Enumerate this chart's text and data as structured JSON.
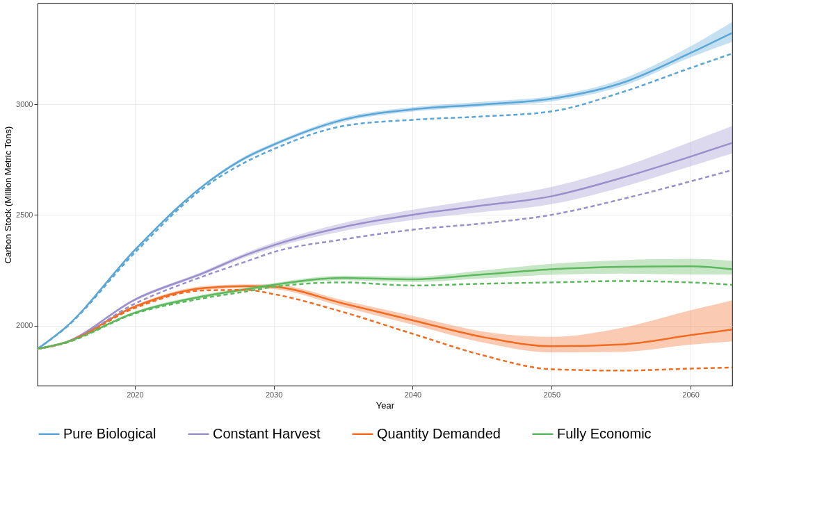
{
  "chart_data": {
    "type": "line",
    "xlabel": "Year",
    "ylabel": "Carbon Stock (Million Metric Tons)",
    "x": [
      2013,
      2015,
      2020,
      2025,
      2028,
      2030,
      2035,
      2040,
      2045,
      2050,
      2055,
      2060,
      2063
    ],
    "xlim": [
      2013,
      2063
    ],
    "xticks": [
      2020,
      2030,
      2040,
      2050,
      2060
    ],
    "ylim": [
      1730,
      3455
    ],
    "yticks": [
      2000,
      2500,
      3000
    ],
    "grid": true,
    "legend": "bottom",
    "marker": "none",
    "series": [
      {
        "name": "Pure Biological",
        "color": "#5aa6d6",
        "values": [
          1896,
          1992,
          2342,
          2636,
          2760,
          2818,
          2930,
          2977,
          2999,
          3025,
          3095,
          3232,
          3322
        ],
        "lower": [
          1896,
          1990,
          2336,
          2630,
          2752,
          2810,
          2920,
          2967,
          2989,
          3013,
          3080,
          3212,
          3282
        ],
        "upper": [
          1896,
          1994,
          2348,
          2642,
          2768,
          2826,
          2940,
          2987,
          3011,
          3037,
          3112,
          3262,
          3372
        ]
      },
      {
        "name": "Constant Harvest",
        "color": "#9b8fcb",
        "values": [
          1896,
          1925,
          2118,
          2240,
          2320,
          2364,
          2446,
          2501,
          2543,
          2585,
          2667,
          2764,
          2826
        ],
        "lower": [
          1896,
          1923,
          2112,
          2232,
          2310,
          2352,
          2428,
          2478,
          2513,
          2549,
          2625,
          2720,
          2778
        ],
        "upper": [
          1896,
          1927,
          2124,
          2248,
          2330,
          2376,
          2464,
          2524,
          2573,
          2627,
          2715,
          2830,
          2902
        ]
      },
      {
        "name": "Quantity Demanded",
        "color": "#f26b21",
        "values": [
          1896,
          1925,
          2087,
          2171,
          2179,
          2176,
          2101,
          2025,
          1950,
          1908,
          1916,
          1958,
          1983
        ],
        "lower": [
          1896,
          1923,
          2081,
          2163,
          2171,
          2166,
          2085,
          2005,
          1925,
          1880,
          1882,
          1915,
          1930
        ],
        "upper": [
          1896,
          1927,
          2093,
          2179,
          2187,
          2186,
          2115,
          2045,
          1975,
          1950,
          1990,
          2070,
          2115
        ]
      },
      {
        "name": "Fully Economic",
        "color": "#5cb85c",
        "values": [
          1896,
          1925,
          2059,
          2134,
          2165,
          2185,
          2216,
          2210,
          2232,
          2255,
          2266,
          2269,
          2255
        ],
        "lower": [
          1896,
          1923,
          2053,
          2126,
          2157,
          2177,
          2206,
          2198,
          2214,
          2230,
          2236,
          2232,
          2232
        ],
        "upper": [
          1896,
          1927,
          2065,
          2142,
          2173,
          2193,
          2226,
          2222,
          2250,
          2280,
          2296,
          2302,
          2294
        ]
      },
      {
        "color": "#5aa6d6",
        "line_style": "dashed",
        "values": [
          1896,
          1990,
          2330,
          2625,
          2740,
          2798,
          2902,
          2930,
          2945,
          2968,
          3053,
          3164,
          3229
        ]
      },
      {
        "color": "#9b8fcb",
        "line_style": "dashed",
        "values": [
          1896,
          1923,
          2100,
          2225,
          2290,
          2333,
          2390,
          2434,
          2462,
          2501,
          2571,
          2652,
          2703
        ]
      },
      {
        "color": "#f26b21",
        "line_style": "dashed",
        "values": [
          1896,
          1923,
          2080,
          2160,
          2162,
          2143,
          2062,
          1964,
          1868,
          1804,
          1798,
          1807,
          1812
        ]
      },
      {
        "color": "#5cb85c",
        "line_style": "dashed",
        "values": [
          1896,
          1923,
          2055,
          2125,
          2155,
          2176,
          2196,
          2182,
          2190,
          2196,
          2202,
          2196,
          2185
        ]
      }
    ]
  }
}
